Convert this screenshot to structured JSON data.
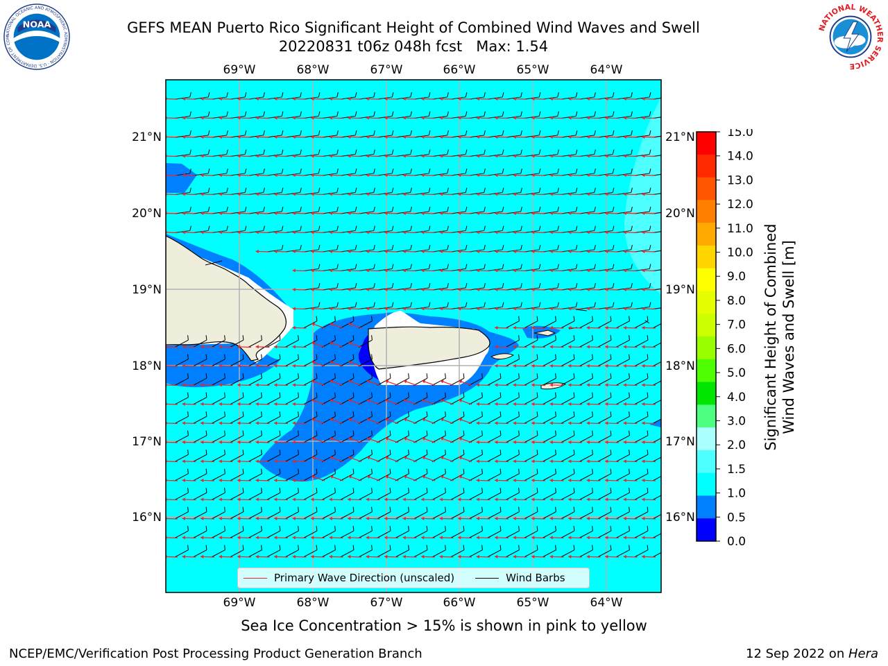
{
  "header": {
    "title_line1": "GEFS MEAN Puerto Rico Significant Height of Combined Wind Waves and Swell",
    "title_line2": "20220831 t06z 048h fcst   Max: 1.54",
    "noaa_logo_text": "NOAA",
    "noaa_ring_text": "NATIONAL OCEANIC AND ATMOSPHERIC ADMINISTRATION · U.S. DEPARTMENT OF COMMERCE",
    "nws_ring_text": "NATIONAL WEATHER SERVICE"
  },
  "map": {
    "lon_labels": [
      "69°W",
      "68°W",
      "67°W",
      "66°W",
      "65°W",
      "64°W"
    ],
    "lat_labels": [
      "21°N",
      "20°N",
      "19°N",
      "18°N",
      "17°N",
      "16°N"
    ],
    "colors": {
      "ocean_1_0_1_5": "#00ffff",
      "ocean_0_5_1_0": "#0080ff",
      "ocean_0_0_0_5": "#0000ff",
      "ocean_1_5_2_0": "#4dffff",
      "land": "#efeddc",
      "wave_arrow": "#e8262a",
      "wind_barb": "#000000",
      "gridline": "#b0b0b0"
    }
  },
  "legend": {
    "wave_label": "Primary Wave Direction (unscaled)",
    "barb_label": "Wind Barbs"
  },
  "colorbar": {
    "label": "Significant Height of Combined\nWind Waves and Swell [m]",
    "ticks": [
      "15.0",
      "14.0",
      "13.0",
      "12.0",
      "11.0",
      "10.0",
      "9.0",
      "8.0",
      "7.0",
      "6.0",
      "5.0",
      "4.0",
      "3.0",
      "2.0",
      "1.5",
      "1.0",
      "0.5",
      "0.0"
    ],
    "colors_top_to_bottom": [
      "#ff0000",
      "#ff2a00",
      "#ff5500",
      "#ff8000",
      "#ffaa00",
      "#ffd500",
      "#ffff00",
      "#e6ff00",
      "#ccff00",
      "#99ff00",
      "#4dff00",
      "#00e600",
      "#4dff80",
      "#aaffff",
      "#4dffff",
      "#00ffff",
      "#0080ff",
      "#0000ff"
    ]
  },
  "notes": {
    "sea_ice": "Sea Ice Concentration > 15% is shown in pink to yellow"
  },
  "footer": {
    "left": "NCEP/EMC/Verification Post Processing Product Generation Branch",
    "right_prefix": "12 Sep 2022 on ",
    "right_host": "Hera"
  }
}
